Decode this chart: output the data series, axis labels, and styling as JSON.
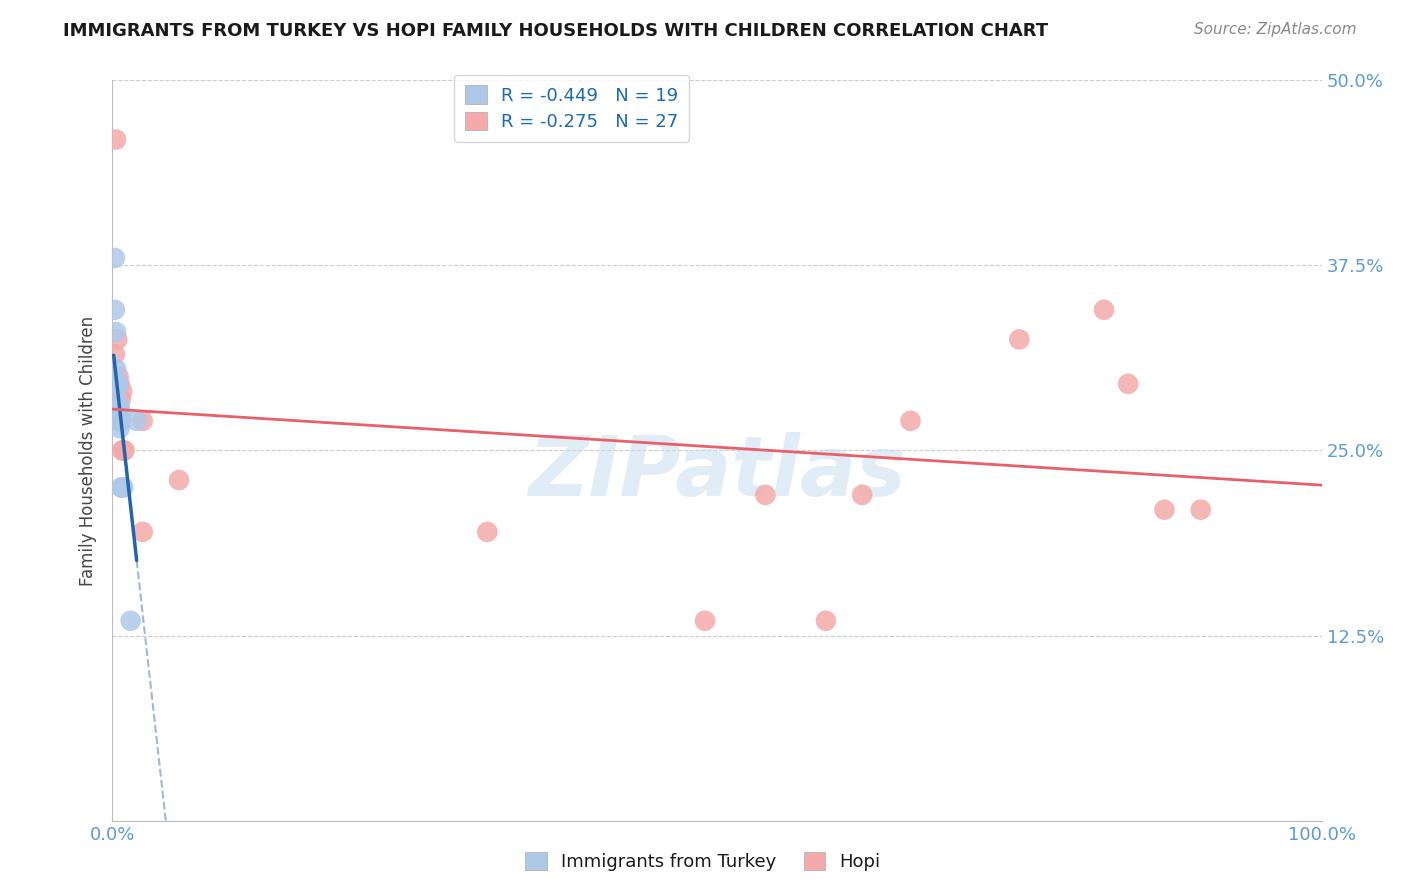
{
  "title": "IMMIGRANTS FROM TURKEY VS HOPI FAMILY HOUSEHOLDS WITH CHILDREN CORRELATION CHART",
  "source": "Source: ZipAtlas.com",
  "ylabel": "Family Households with Children",
  "xlim": [
    0.0,
    1.0
  ],
  "ylim": [
    0.0,
    0.5
  ],
  "x_ticks": [
    0.0,
    0.1,
    0.2,
    0.3,
    0.4,
    0.5,
    0.6,
    0.7,
    0.8,
    0.9,
    1.0
  ],
  "x_tick_labels": [
    "0.0%",
    "",
    "",
    "",
    "",
    "",
    "",
    "",
    "",
    "",
    "100.0%"
  ],
  "y_ticks": [
    0.0,
    0.125,
    0.25,
    0.375,
    0.5
  ],
  "y_tick_labels": [
    "",
    "12.5%",
    "25.0%",
    "37.5%",
    "50.0%"
  ],
  "legend1_label": "R = -0.449   N = 19",
  "legend2_label": "R = -0.275   N = 27",
  "blue_color": "#aec8e8",
  "pink_color": "#f4aaaa",
  "blue_line_color": "#2166ac",
  "pink_line_color": "#e8606a",
  "watermark": "ZIPatlas",
  "turkey_x": [
    0.001,
    0.002,
    0.002,
    0.003,
    0.003,
    0.003,
    0.004,
    0.005,
    0.005,
    0.005,
    0.006,
    0.006,
    0.007,
    0.007,
    0.007,
    0.008,
    0.009,
    0.015,
    0.02
  ],
  "turkey_y": [
    0.295,
    0.38,
    0.345,
    0.33,
    0.305,
    0.29,
    0.295,
    0.295,
    0.275,
    0.27,
    0.28,
    0.265,
    0.275,
    0.27,
    0.225,
    0.225,
    0.225,
    0.135,
    0.27
  ],
  "hopi_x": [
    0.001,
    0.002,
    0.003,
    0.004,
    0.004,
    0.005,
    0.006,
    0.007,
    0.007,
    0.008,
    0.008,
    0.009,
    0.01,
    0.025,
    0.025,
    0.055,
    0.31,
    0.49,
    0.54,
    0.59,
    0.62,
    0.66,
    0.75,
    0.82,
    0.84,
    0.87,
    0.9
  ],
  "hopi_y": [
    0.275,
    0.315,
    0.46,
    0.325,
    0.295,
    0.3,
    0.295,
    0.285,
    0.27,
    0.29,
    0.25,
    0.25,
    0.25,
    0.27,
    0.195,
    0.23,
    0.195,
    0.135,
    0.22,
    0.135,
    0.22,
    0.27,
    0.325,
    0.345,
    0.295,
    0.21,
    0.21
  ],
  "turkey_R": -0.449,
  "turkey_N": 19,
  "hopi_R": -0.275,
  "hopi_N": 27
}
